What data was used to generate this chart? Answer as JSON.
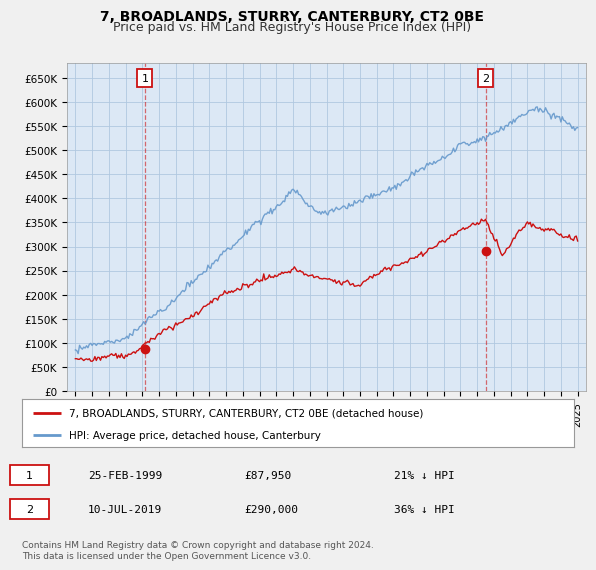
{
  "title": "7, BROADLANDS, STURRY, CANTERBURY, CT2 0BE",
  "subtitle": "Price paid vs. HM Land Registry's House Price Index (HPI)",
  "ylabel_ticks": [
    "£0",
    "£50K",
    "£100K",
    "£150K",
    "£200K",
    "£250K",
    "£300K",
    "£350K",
    "£400K",
    "£450K",
    "£500K",
    "£550K",
    "£600K",
    "£650K"
  ],
  "ytick_values": [
    0,
    50000,
    100000,
    150000,
    200000,
    250000,
    300000,
    350000,
    400000,
    450000,
    500000,
    550000,
    600000,
    650000
  ],
  "ylim": [
    0,
    680000
  ],
  "xlim_start": 1994.5,
  "xlim_end": 2025.5,
  "background_color": "#f0f0f0",
  "plot_bg_color": "#dce8f5",
  "grid_color": "#b0c8e0",
  "hpi_color": "#6699cc",
  "price_color": "#cc1111",
  "marker1_date_x": 1999.15,
  "marker1_price": 87950,
  "marker2_date_x": 2019.52,
  "marker2_price": 290000,
  "legend_label_price": "7, BROADLANDS, STURRY, CANTERBURY, CT2 0BE (detached house)",
  "legend_label_hpi": "HPI: Average price, detached house, Canterbury",
  "table_row1": [
    "1",
    "25-FEB-1999",
    "£87,950",
    "21% ↓ HPI"
  ],
  "table_row2": [
    "2",
    "10-JUL-2019",
    "£290,000",
    "36% ↓ HPI"
  ],
  "footnote": "Contains HM Land Registry data © Crown copyright and database right 2024.\nThis data is licensed under the Open Government Licence v3.0.",
  "title_fontsize": 10,
  "subtitle_fontsize": 9
}
